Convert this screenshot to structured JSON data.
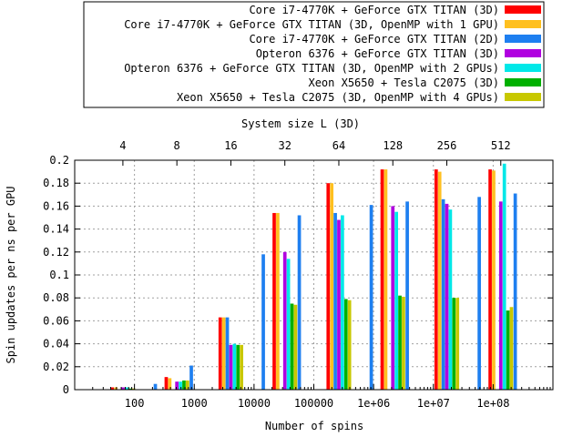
{
  "chart_data": {
    "type": "bar",
    "title": "",
    "xlabel": "Number of spins",
    "ylabel": "Spin updates per ns per GPU",
    "x2label": "System size L (3D)",
    "x_scale": "log",
    "xlim": [
      10,
      1000000000
    ],
    "ylim": [
      0,
      0.2
    ],
    "grid": true,
    "legend_position": "top-right",
    "xticks": [
      {
        "value": 100,
        "label": "100"
      },
      {
        "value": 1000,
        "label": "1000"
      },
      {
        "value": 10000,
        "label": "10000"
      },
      {
        "value": 100000,
        "label": "100000"
      },
      {
        "value": 1000000,
        "label": "1e+06"
      },
      {
        "value": 10000000,
        "label": "1e+07"
      },
      {
        "value": 100000000,
        "label": "1e+08"
      }
    ],
    "yticks": [
      {
        "value": 0,
        "label": "0"
      },
      {
        "value": 0.02,
        "label": "0.02"
      },
      {
        "value": 0.04,
        "label": "0.04"
      },
      {
        "value": 0.06,
        "label": "0.06"
      },
      {
        "value": 0.08,
        "label": "0.08"
      },
      {
        "value": 0.1,
        "label": "0.1"
      },
      {
        "value": 0.12,
        "label": "0.12"
      },
      {
        "value": 0.14,
        "label": "0.14"
      },
      {
        "value": 0.16,
        "label": "0.16"
      },
      {
        "value": 0.18,
        "label": "0.18"
      },
      {
        "value": 0.2,
        "label": "0.2"
      }
    ],
    "x2ticks": [
      {
        "value": 64,
        "label": "4"
      },
      {
        "value": 512,
        "label": "8"
      },
      {
        "value": 4096,
        "label": "16"
      },
      {
        "value": 32768,
        "label": "32"
      },
      {
        "value": 262144,
        "label": "64"
      },
      {
        "value": 2097152,
        "label": "128"
      },
      {
        "value": 16777216,
        "label": "256"
      },
      {
        "value": 134217728,
        "label": "512"
      }
    ],
    "series": [
      {
        "name": "Core i7-4770K + GeForce GTX TITAN (3D)",
        "color": "#ff0000",
        "points": [
          [
            64,
            0.002
          ],
          [
            512,
            0.011
          ],
          [
            4096,
            0.063
          ],
          [
            32768,
            0.154
          ],
          [
            262144,
            0.18
          ],
          [
            2097152,
            0.192
          ],
          [
            16777216,
            0.192
          ],
          [
            134217728,
            0.192
          ]
        ]
      },
      {
        "name": "Core i7-4770K + GeForce GTX TITAN (3D, OpenMP with 1 GPU)",
        "color": "#ffc020",
        "points": [
          [
            64,
            0.002
          ],
          [
            512,
            0.01
          ],
          [
            4096,
            0.063
          ],
          [
            32768,
            0.154
          ],
          [
            262144,
            0.18
          ],
          [
            2097152,
            0.192
          ],
          [
            16777216,
            0.19
          ],
          [
            134217728,
            0.191
          ]
        ]
      },
      {
        "name": "Core i7-4770K + GeForce GTX TITAN (2D)",
        "color": "#1e7ff0",
        "points": [
          [
            256,
            0.005
          ],
          [
            1024,
            0.021
          ],
          [
            4096,
            0.063
          ],
          [
            16384,
            0.118
          ],
          [
            65536,
            0.152
          ],
          [
            262144,
            0.154
          ],
          [
            1048576,
            0.161
          ],
          [
            4194304,
            0.164
          ],
          [
            16777216,
            0.166
          ],
          [
            67108864,
            0.168
          ],
          [
            268435456,
            0.171
          ]
        ]
      },
      {
        "name": "Opteron 6376 + GeForce GTX TITAN (3D)",
        "color": "#b000e0",
        "points": [
          [
            64,
            0.002
          ],
          [
            512,
            0.007
          ],
          [
            4096,
            0.039
          ],
          [
            32768,
            0.12
          ],
          [
            262144,
            0.148
          ],
          [
            2097152,
            0.16
          ],
          [
            16777216,
            0.162
          ],
          [
            134217728,
            0.164
          ]
        ]
      },
      {
        "name": "Opteron 6376 + GeForce GTX TITAN (3D, OpenMP with 2 GPUs)",
        "color": "#00e8e8",
        "points": [
          [
            64,
            0.002
          ],
          [
            512,
            0.007
          ],
          [
            4096,
            0.04
          ],
          [
            32768,
            0.114
          ],
          [
            262144,
            0.152
          ],
          [
            2097152,
            0.155
          ],
          [
            16777216,
            0.157
          ],
          [
            134217728,
            0.197
          ]
        ]
      },
      {
        "name": "Xeon X5650 + Tesla C2075 (3D)",
        "color": "#00b000",
        "points": [
          [
            64,
            0.001
          ],
          [
            512,
            0.008
          ],
          [
            4096,
            0.039
          ],
          [
            32768,
            0.075
          ],
          [
            262144,
            0.079
          ],
          [
            2097152,
            0.082
          ],
          [
            16777216,
            0.08
          ],
          [
            134217728,
            0.069
          ]
        ]
      },
      {
        "name": "Xeon X5650 + Tesla C2075 (3D, OpenMP with 4 GPUs)",
        "color": "#c8c800",
        "points": [
          [
            64,
            0.001
          ],
          [
            512,
            0.008
          ],
          [
            4096,
            0.039
          ],
          [
            32768,
            0.074
          ],
          [
            262144,
            0.078
          ],
          [
            2097152,
            0.081
          ],
          [
            16777216,
            0.08
          ],
          [
            134217728,
            0.072
          ]
        ]
      }
    ]
  }
}
